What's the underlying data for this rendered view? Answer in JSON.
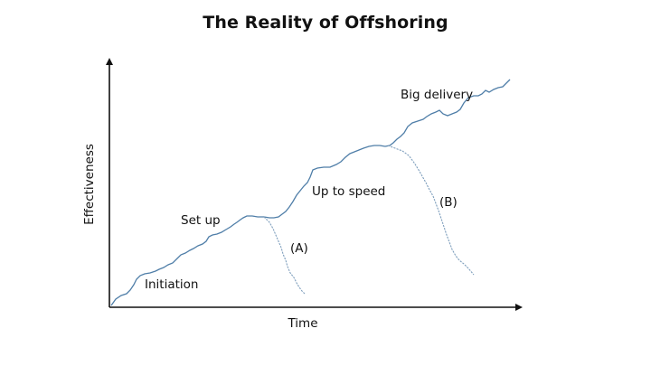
{
  "diagram": {
    "title": "The Reality of Offshoring",
    "x_axis_label": "Time",
    "y_axis_label": "Effectiveness",
    "annotations": {
      "initiation": "Initiation",
      "set_up": "Set up",
      "up_to_speed": "Up to speed",
      "big_delivery": "Big delivery",
      "branch_a": "(A)",
      "branch_b": "(B)"
    },
    "colors": {
      "axis": "#111111",
      "main_curve": "#4f7ea8",
      "branch_curve": "#7f9fbd"
    }
  }
}
